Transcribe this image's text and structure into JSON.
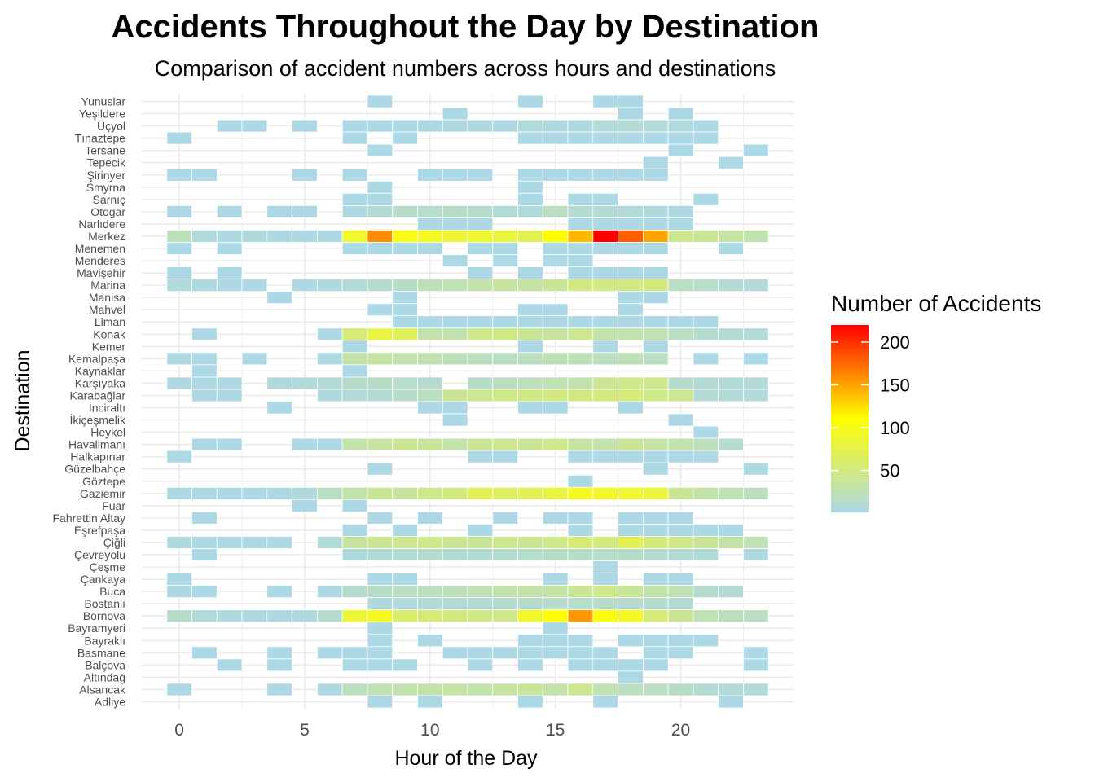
{
  "chart_data": {
    "type": "heatmap",
    "title": "Accidents Throughout the Day by Destination",
    "subtitle": "Comparison of accident numbers across hours and destinations",
    "xlabel": "Hour of the Day",
    "ylabel": "Destination",
    "xlim": [
      -1.5,
      24.5
    ],
    "x_ticks": [
      0,
      5,
      10,
      15,
      20
    ],
    "grid": true,
    "legend": {
      "title": "Number of Accidents",
      "position": "right",
      "ticks": [
        50,
        100,
        150,
        200
      ],
      "min": 1,
      "max": 220,
      "colors": [
        "#add8e6",
        "#ffff00",
        "#ff0000"
      ]
    },
    "x": [
      0,
      1,
      2,
      3,
      4,
      5,
      6,
      7,
      8,
      9,
      10,
      11,
      12,
      13,
      14,
      15,
      16,
      17,
      18,
      19,
      20,
      21,
      22,
      23
    ],
    "y": [
      "Yunuslar",
      "Yeşildere",
      "Üçyol",
      "Tınaztepe",
      "Tersane",
      "Tepecik",
      "Şirinyer",
      "Smyrna",
      "Sarnıç",
      "Otogar",
      "Narlıdere",
      "Merkez",
      "Menemen",
      "Menderes",
      "Mavişehir",
      "Marina",
      "Manisa",
      "Mahvel",
      "Liman",
      "Konak",
      "Kemer",
      "Kemalpaşa",
      "Kaynaklar",
      "Karşıyaka",
      "Karabağlar",
      "İnciraltı",
      "İkiçeşmelik",
      "Heykel",
      "Havalimanı",
      "Halkapınar",
      "Güzelbahçe",
      "Göztepe",
      "Gaziemir",
      "Fuar",
      "Fahrettin Altay",
      "Eşrefpaşa",
      "Çiğli",
      "Çevreyolu",
      "Çeşme",
      "Çankaya",
      "Buca",
      "Bostanlı",
      "Bornova",
      "Bayramyeri",
      "Bayraklı",
      "Basmane",
      "Balçova",
      "Altındağ",
      "Alsancak",
      "Adliye"
    ],
    "values": [
      [
        null,
        null,
        null,
        null,
        null,
        null,
        null,
        null,
        1,
        null,
        null,
        null,
        null,
        null,
        1,
        null,
        null,
        1,
        1,
        null,
        null,
        null,
        null,
        null
      ],
      [
        null,
        null,
        null,
        null,
        null,
        null,
        null,
        null,
        null,
        null,
        null,
        1,
        null,
        null,
        null,
        null,
        null,
        null,
        1,
        null,
        1,
        null,
        null,
        null
      ],
      [
        null,
        null,
        1,
        1,
        null,
        1,
        null,
        1,
        1,
        2,
        3,
        5,
        4,
        2,
        6,
        4,
        5,
        8,
        10,
        8,
        6,
        2,
        null,
        null
      ],
      [
        1,
        null,
        null,
        null,
        null,
        null,
        null,
        1,
        null,
        1,
        null,
        null,
        null,
        null,
        1,
        2,
        1,
        2,
        2,
        1,
        1,
        1,
        null,
        null
      ],
      [
        null,
        null,
        null,
        null,
        null,
        null,
        null,
        null,
        1,
        null,
        null,
        null,
        null,
        null,
        null,
        null,
        null,
        null,
        null,
        null,
        1,
        null,
        null,
        1
      ],
      [
        null,
        null,
        null,
        null,
        null,
        null,
        null,
        null,
        null,
        null,
        null,
        null,
        null,
        null,
        null,
        null,
        null,
        null,
        null,
        1,
        null,
        null,
        1,
        null
      ],
      [
        1,
        1,
        null,
        null,
        null,
        1,
        null,
        1,
        null,
        null,
        1,
        1,
        1,
        null,
        1,
        1,
        1,
        2,
        2,
        1,
        null,
        null,
        null,
        null
      ],
      [
        null,
        null,
        null,
        null,
        null,
        null,
        null,
        null,
        1,
        null,
        null,
        null,
        null,
        null,
        1,
        null,
        null,
        null,
        null,
        null,
        null,
        null,
        null,
        null
      ],
      [
        null,
        null,
        null,
        null,
        null,
        null,
        null,
        1,
        1,
        null,
        null,
        null,
        null,
        null,
        1,
        null,
        1,
        1,
        null,
        null,
        null,
        1,
        null,
        null
      ],
      [
        1,
        null,
        1,
        null,
        1,
        1,
        null,
        3,
        10,
        15,
        14,
        16,
        12,
        8,
        6,
        18,
        11,
        10,
        7,
        5,
        3,
        null,
        null,
        null
      ],
      [
        null,
        null,
        null,
        null,
        null,
        null,
        null,
        null,
        null,
        null,
        1,
        1,
        1,
        null,
        null,
        null,
        1,
        1,
        1,
        1,
        1,
        null,
        null,
        null
      ],
      [
        22,
        6,
        4,
        5,
        4,
        3,
        4,
        90,
        160,
        100,
        95,
        85,
        88,
        82,
        72,
        112,
        140,
        220,
        180,
        150,
        42,
        38,
        32,
        28
      ],
      [
        1,
        null,
        1,
        null,
        null,
        null,
        null,
        1,
        1,
        1,
        1,
        null,
        1,
        1,
        null,
        1,
        1,
        2,
        1,
        1,
        null,
        null,
        1,
        null
      ],
      [
        null,
        null,
        null,
        null,
        null,
        null,
        null,
        null,
        null,
        null,
        null,
        1,
        null,
        1,
        null,
        1,
        1,
        null,
        null,
        null,
        null,
        null,
        null,
        null
      ],
      [
        1,
        null,
        1,
        null,
        null,
        null,
        null,
        null,
        null,
        null,
        null,
        null,
        1,
        null,
        1,
        null,
        1,
        1,
        1,
        1,
        null,
        null,
        null,
        null
      ],
      [
        6,
        4,
        3,
        2,
        null,
        3,
        4,
        8,
        12,
        15,
        22,
        25,
        30,
        35,
        32,
        40,
        50,
        48,
        50,
        52,
        18,
        14,
        10,
        8
      ],
      [
        null,
        null,
        null,
        null,
        1,
        null,
        null,
        null,
        null,
        1,
        null,
        null,
        null,
        null,
        null,
        null,
        null,
        null,
        1,
        1,
        null,
        null,
        null,
        null
      ],
      [
        null,
        null,
        null,
        null,
        null,
        null,
        null,
        null,
        1,
        1,
        null,
        null,
        null,
        null,
        1,
        1,
        null,
        null,
        1,
        null,
        null,
        null,
        null,
        null
      ],
      [
        null,
        null,
        null,
        null,
        null,
        null,
        null,
        null,
        null,
        1,
        1,
        1,
        1,
        1,
        1,
        2,
        2,
        2,
        2,
        2,
        1,
        1,
        null,
        null
      ],
      [
        null,
        1,
        null,
        null,
        null,
        null,
        2,
        55,
        80,
        70,
        30,
        28,
        45,
        48,
        40,
        35,
        42,
        30,
        28,
        25,
        18,
        12,
        10,
        8
      ],
      [
        null,
        null,
        null,
        null,
        null,
        null,
        null,
        1,
        null,
        null,
        null,
        null,
        null,
        null,
        1,
        null,
        null,
        1,
        null,
        1,
        null,
        null,
        null,
        null
      ],
      [
        3,
        2,
        null,
        1,
        null,
        null,
        3,
        30,
        32,
        28,
        25,
        22,
        20,
        18,
        20,
        24,
        22,
        20,
        22,
        18,
        null,
        2,
        null,
        1
      ],
      [
        null,
        1,
        null,
        null,
        null,
        null,
        null,
        1,
        null,
        null,
        null,
        null,
        null,
        null,
        null,
        null,
        null,
        null,
        null,
        null,
        null,
        null,
        null,
        null
      ],
      [
        3,
        3,
        3,
        null,
        5,
        6,
        8,
        15,
        16,
        14,
        12,
        null,
        15,
        20,
        22,
        25,
        28,
        40,
        45,
        44,
        12,
        10,
        8,
        7
      ],
      [
        null,
        3,
        3,
        null,
        null,
        null,
        5,
        8,
        10,
        15,
        20,
        40,
        42,
        45,
        48,
        50,
        50,
        52,
        55,
        45,
        42,
        10,
        8,
        7
      ],
      [
        null,
        null,
        null,
        null,
        1,
        null,
        null,
        null,
        null,
        null,
        1,
        1,
        null,
        null,
        1,
        1,
        null,
        null,
        1,
        null,
        null,
        null,
        null,
        null
      ],
      [
        null,
        null,
        null,
        null,
        null,
        null,
        null,
        null,
        null,
        null,
        null,
        1,
        null,
        null,
        null,
        null,
        null,
        null,
        null,
        null,
        1,
        null,
        null,
        null
      ],
      [
        null,
        null,
        null,
        null,
        null,
        null,
        null,
        null,
        null,
        null,
        null,
        null,
        null,
        null,
        null,
        null,
        null,
        null,
        null,
        null,
        null,
        1,
        null,
        null
      ],
      [
        null,
        1,
        1,
        null,
        null,
        2,
        3,
        30,
        35,
        40,
        38,
        30,
        40,
        42,
        38,
        45,
        35,
        30,
        40,
        32,
        28,
        22,
        12,
        null
      ],
      [
        1,
        null,
        null,
        null,
        null,
        null,
        null,
        null,
        null,
        null,
        null,
        null,
        1,
        1,
        null,
        null,
        1,
        1,
        1,
        1,
        1,
        1,
        null,
        null
      ],
      [
        null,
        null,
        null,
        null,
        null,
        null,
        null,
        null,
        1,
        null,
        null,
        null,
        null,
        null,
        null,
        null,
        null,
        null,
        null,
        1,
        null,
        null,
        null,
        1
      ],
      [
        null,
        null,
        null,
        null,
        null,
        null,
        null,
        null,
        null,
        null,
        null,
        null,
        null,
        null,
        null,
        null,
        1,
        null,
        null,
        null,
        null,
        null,
        null,
        null
      ],
      [
        3,
        3,
        2,
        2,
        3,
        5,
        18,
        30,
        38,
        35,
        45,
        48,
        70,
        65,
        70,
        80,
        95,
        90,
        88,
        82,
        40,
        30,
        25,
        20
      ],
      [
        null,
        null,
        null,
        null,
        null,
        1,
        null,
        1,
        null,
        null,
        null,
        null,
        null,
        null,
        null,
        null,
        null,
        null,
        null,
        null,
        null,
        null,
        null,
        null
      ],
      [
        null,
        1,
        null,
        null,
        null,
        null,
        null,
        null,
        1,
        null,
        1,
        null,
        null,
        1,
        null,
        1,
        1,
        null,
        1,
        1,
        1,
        null,
        null,
        null
      ],
      [
        null,
        null,
        null,
        null,
        null,
        null,
        null,
        1,
        null,
        1,
        null,
        null,
        1,
        null,
        null,
        null,
        1,
        null,
        1,
        1,
        1,
        1,
        1,
        null
      ],
      [
        5,
        4,
        3,
        3,
        2,
        null,
        8,
        35,
        40,
        42,
        45,
        40,
        38,
        42,
        40,
        45,
        55,
        50,
        70,
        52,
        45,
        38,
        30,
        25
      ],
      [
        null,
        1,
        null,
        null,
        null,
        null,
        null,
        5,
        8,
        10,
        12,
        10,
        10,
        12,
        14,
        16,
        15,
        14,
        15,
        12,
        10,
        8,
        null,
        5
      ],
      [
        null,
        null,
        null,
        null,
        null,
        null,
        null,
        null,
        null,
        null,
        null,
        null,
        null,
        null,
        null,
        null,
        null,
        1,
        null,
        null,
        null,
        null,
        null,
        null
      ],
      [
        1,
        null,
        null,
        null,
        null,
        null,
        null,
        null,
        1,
        1,
        null,
        null,
        null,
        null,
        null,
        1,
        null,
        1,
        null,
        1,
        1,
        null,
        null,
        null
      ],
      [
        2,
        1,
        null,
        null,
        1,
        null,
        3,
        12,
        15,
        18,
        20,
        22,
        25,
        28,
        30,
        32,
        40,
        45,
        38,
        30,
        25,
        12,
        10,
        null
      ],
      [
        null,
        null,
        null,
        null,
        null,
        null,
        null,
        null,
        5,
        6,
        8,
        9,
        10,
        11,
        12,
        13,
        14,
        15,
        12,
        11,
        10,
        null,
        null,
        null
      ],
      [
        15,
        6,
        5,
        4,
        3,
        5,
        12,
        85,
        95,
        60,
        55,
        50,
        48,
        45,
        92,
        110,
        155,
        105,
        95,
        55,
        40,
        25,
        20,
        18
      ],
      [
        null,
        null,
        null,
        null,
        null,
        null,
        null,
        null,
        1,
        null,
        null,
        null,
        null,
        null,
        null,
        1,
        null,
        null,
        null,
        null,
        null,
        null,
        null,
        null
      ],
      [
        null,
        null,
        null,
        null,
        null,
        null,
        null,
        null,
        1,
        null,
        1,
        null,
        null,
        null,
        1,
        1,
        1,
        null,
        1,
        1,
        1,
        1,
        null,
        null
      ],
      [
        null,
        1,
        null,
        null,
        1,
        null,
        1,
        1,
        1,
        null,
        null,
        2,
        2,
        2,
        2,
        2,
        3,
        3,
        null,
        2,
        2,
        null,
        null,
        1
      ],
      [
        null,
        null,
        1,
        null,
        1,
        null,
        null,
        1,
        1,
        1,
        null,
        null,
        1,
        null,
        1,
        null,
        1,
        1,
        1,
        1,
        null,
        null,
        null,
        1
      ],
      [
        null,
        null,
        null,
        null,
        null,
        null,
        null,
        null,
        null,
        null,
        null,
        null,
        null,
        null,
        null,
        null,
        null,
        null,
        1,
        null,
        null,
        null,
        null,
        null
      ],
      [
        1,
        null,
        null,
        null,
        1,
        null,
        4,
        20,
        25,
        28,
        30,
        32,
        28,
        35,
        38,
        30,
        42,
        25,
        20,
        18,
        15,
        10,
        8,
        6
      ],
      [
        null,
        null,
        null,
        null,
        null,
        null,
        null,
        null,
        1,
        null,
        1,
        null,
        null,
        null,
        1,
        null,
        null,
        1,
        null,
        null,
        null,
        null,
        1,
        null
      ]
    ]
  }
}
